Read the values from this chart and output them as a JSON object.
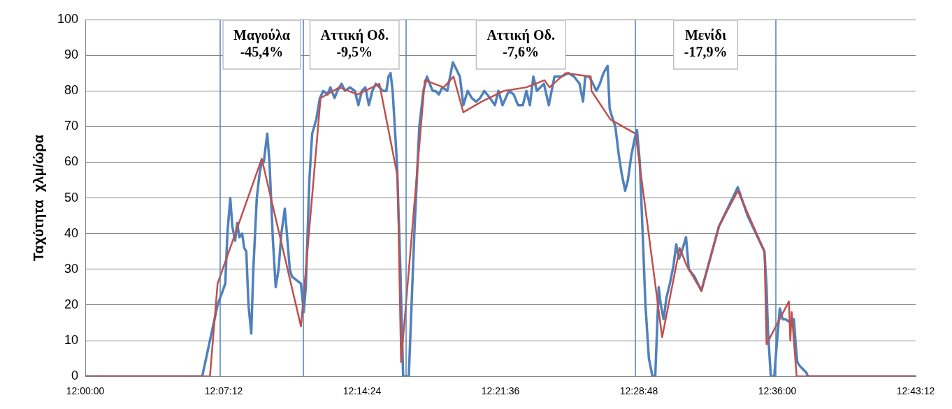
{
  "chart_data": {
    "type": "line",
    "ylabel": "Ταχύτητα  χλμ/ώρα",
    "grid": "y",
    "marker": "none",
    "line_style": "solid",
    "xlim": [
      12,
      12.72
    ],
    "xticks": [
      {
        "value": 12,
        "label": "12:00:00"
      },
      {
        "value": 12.12,
        "label": "12:07:12"
      },
      {
        "value": 12.24,
        "label": "12:14:24"
      },
      {
        "value": 12.36,
        "label": "12:21:36"
      },
      {
        "value": 12.48,
        "label": "12:28:48"
      },
      {
        "value": 12.6,
        "label": "12:36:00"
      },
      {
        "value": 12.72,
        "label": "12:43:12"
      }
    ],
    "ylim": [
      0,
      100
    ],
    "yticks": [
      0,
      10,
      20,
      30,
      40,
      50,
      60,
      70,
      80,
      90,
      100
    ],
    "series": [
      {
        "color": "#4f81bd",
        "x": [
          12,
          12.1014,
          12.1147,
          12.1214,
          12.1232,
          12.1257,
          12.1275,
          12.1299,
          12.1317,
          12.1336,
          12.136,
          12.1378,
          12.1396,
          12.1415,
          12.1439,
          12.1457,
          12.1487,
          12.1512,
          12.153,
          12.1548,
          12.1566,
          12.1578,
          12.1597,
          12.1627,
          12.1651,
          12.1676,
          12.17,
          12.173,
          12.1748,
          12.1773,
          12.1791,
          12.187,
          12.1894,
          12.1912,
          12.1943,
          12.1967,
          12.2003,
          12.2034,
          12.2064,
          12.2101,
          12.2125,
          12.2161,
          12.2186,
          12.2222,
          12.2252,
          12.2295,
          12.2337,
          12.2368,
          12.2398,
          12.2428,
          12.2459,
          12.2489,
          12.2519,
          12.255,
          12.258,
          12.2611,
          12.2629,
          12.2647,
          12.2665,
          12.2702,
          12.2732,
          12.2756,
          12.2805,
          12.2853,
          12.2896,
          12.2932,
          12.2963,
          12.2987,
          12.3011,
          12.3036,
          12.3066,
          12.3096,
          12.3139,
          12.3163,
          12.3187,
          12.3218,
          12.3248,
          12.3278,
          12.3315,
          12.3351,
          12.3388,
          12.3424,
          12.346,
          12.3509,
          12.3552,
          12.3582,
          12.3618,
          12.3673,
          12.3715,
          12.3752,
          12.3794,
          12.3825,
          12.3855,
          12.3885,
          12.3916,
          12.3946,
          12.3977,
          12.4019,
          12.4068,
          12.4128,
          12.4189,
          12.4238,
          12.4286,
          12.4316,
          12.4335,
          12.4371,
          12.4432,
          12.4462,
          12.4493,
          12.4529,
          12.4547,
          12.4565,
          12.4596,
          12.4626,
          12.465,
          12.4681,
          12.4705,
          12.4735,
          12.4766,
          12.4784,
          12.4808,
          12.4833,
          12.4857,
          12.4887,
          12.4918,
          12.4942,
          12.4954,
          12.4972,
          12.499,
          12.5015,
          12.5039,
          12.5069,
          12.51,
          12.5124,
          12.5148,
          12.5172,
          12.5191,
          12.5209,
          12.5233,
          12.5282,
          12.5342,
          12.5494,
          12.5658,
          12.5743,
          12.5889,
          12.5907,
          12.5919,
          12.5944,
          12.5974,
          12.5998,
          12.6022,
          12.6047,
          12.6071,
          12.612,
          12.6144,
          12.6162,
          12.6174,
          12.6193,
          12.6223,
          12.6253,
          12.6265,
          12.72
        ],
        "values": [
          0,
          0,
          20,
          26,
          40,
          50,
          42,
          38,
          43,
          39,
          40,
          36,
          35,
          20,
          12,
          30,
          50,
          57,
          60,
          60,
          65,
          68,
          60,
          38,
          25,
          30,
          40,
          47,
          40,
          30,
          28,
          26,
          18,
          25,
          55,
          68,
          72,
          78,
          80,
          79,
          81,
          78,
          80,
          82,
          80,
          81,
          80,
          76,
          80,
          81,
          76,
          80,
          82,
          81,
          80,
          80,
          84,
          85,
          80,
          60,
          30,
          0,
          0,
          40,
          70,
          80,
          84,
          82,
          80,
          80,
          79,
          81,
          80,
          84,
          88,
          86,
          84,
          76,
          80,
          78,
          77,
          78,
          80,
          78,
          76,
          80,
          76,
          80,
          79,
          76,
          76,
          80,
          76,
          84,
          80,
          81,
          82,
          76,
          84,
          84,
          85,
          84,
          82,
          77,
          84,
          84,
          80,
          82,
          85,
          87,
          75,
          73,
          70,
          62,
          57,
          52,
          55,
          62,
          67,
          69,
          60,
          40,
          20,
          5,
          0,
          0,
          10,
          25,
          20,
          16,
          22,
          26,
          31,
          37,
          33,
          35,
          37,
          39,
          30,
          28,
          24,
          42,
          53,
          45,
          35,
          25,
          13,
          0,
          0,
          10,
          19,
          16,
          16,
          15,
          16,
          8,
          4,
          3,
          2,
          1,
          0,
          0
        ]
      },
      {
        "color": "#c0504d",
        "x": [
          12,
          12.1081,
          12.1147,
          12.153,
          12.187,
          12.204,
          12.2204,
          12.2361,
          12.255,
          12.2708,
          12.2738,
          12.2944,
          12.3108,
          12.3193,
          12.3278,
          12.3436,
          12.363,
          12.3824,
          12.3982,
          12.4025,
          12.4165,
          12.4383,
          12.4389,
          12.4553,
          12.4772,
          12.5002,
          12.5154,
          12.5215,
          12.5342,
          12.5494,
          12.5658,
          12.5889,
          12.5907,
          12.6101,
          12.6113,
          12.6125,
          12.6168,
          12.72
        ],
        "values": [
          0,
          0,
          26,
          61,
          14,
          78,
          81,
          79,
          82,
          56,
          4,
          83,
          81,
          84,
          74,
          77,
          80,
          81,
          83,
          81,
          85,
          84,
          80,
          72,
          68,
          11,
          36,
          31,
          24,
          42,
          52,
          35,
          9,
          21,
          10,
          18,
          0,
          0
        ]
      }
    ],
    "ref_lines": [
      {
        "axis": "x",
        "value": 12.1172,
        "color": "#4f81bd"
      },
      {
        "axis": "x",
        "value": 12.1888,
        "color": "#4f81bd"
      },
      {
        "axis": "x",
        "value": 12.2781,
        "color": "#4f81bd"
      },
      {
        "axis": "x",
        "value": 12.4772,
        "color": "#4f81bd"
      },
      {
        "axis": "x",
        "value": 12.5986,
        "color": "#4f81bd"
      }
    ],
    "annotations": [
      "Μαγούλα\n-45,4%",
      "Αττική Οδ.\n-9,5%",
      "Αττική Οδ.\n-7,6%",
      "Μενίδι\n-17,9%"
    ]
  }
}
